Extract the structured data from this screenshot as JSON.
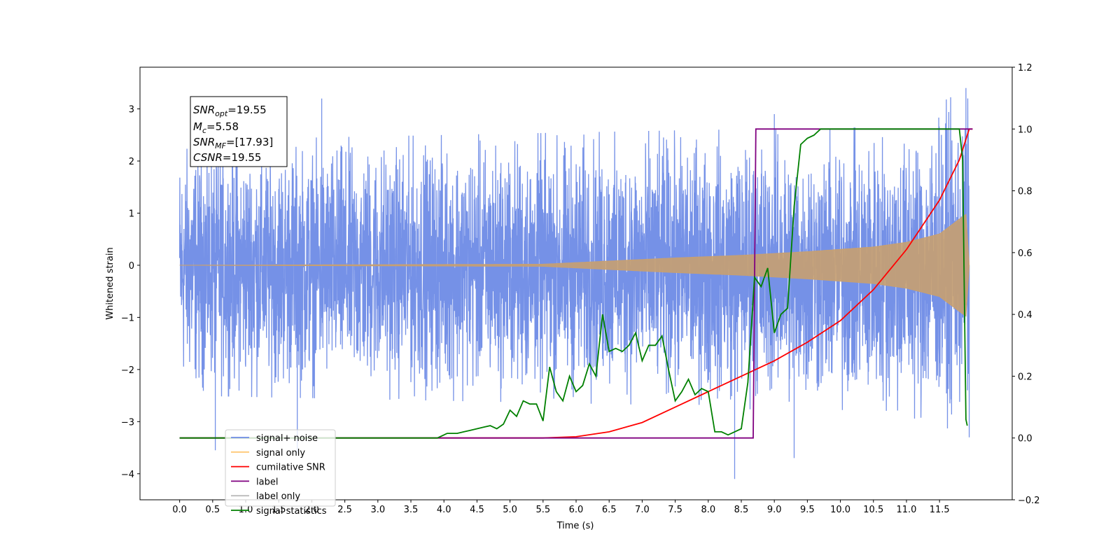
{
  "chart_data": {
    "type": "line",
    "title": "",
    "xlabel": "Time (s)",
    "ylabel": "Whitened strain",
    "xlim": [
      -0.6,
      12.6
    ],
    "ylim_left": [
      -4.5,
      3.8
    ],
    "ylim_right": [
      -0.2,
      1.2
    ],
    "x_ticks": [
      0.0,
      0.5,
      1.0,
      1.5,
      2.0,
      2.5,
      3.0,
      3.5,
      4.0,
      4.5,
      5.0,
      5.5,
      6.0,
      6.5,
      7.0,
      7.5,
      8.0,
      8.5,
      9.0,
      9.5,
      10.0,
      10.5,
      11.0,
      11.5
    ],
    "x_tick_labels": [
      "0.0",
      "0.5",
      "1.0",
      "1.5",
      "2.0",
      "2.5",
      "3.0",
      "3.5",
      "4.0",
      "4.5",
      "5.0",
      "5.5",
      "6.0",
      "6.5",
      "7.0",
      "7.5",
      "8.0",
      "8.5",
      "9.0",
      "9.5",
      "10.0",
      "10.5",
      "11.0",
      "11.5"
    ],
    "y_left_ticks": [
      -4,
      -3,
      -2,
      -1,
      0,
      1,
      2,
      3
    ],
    "y_left_tick_labels": [
      "−4",
      "−3",
      "−2",
      "−1",
      "0",
      "1",
      "2",
      "3"
    ],
    "y_right_ticks": [
      -0.2,
      0.0,
      0.2,
      0.4,
      0.6,
      0.8,
      1.0,
      1.2
    ],
    "y_right_tick_labels": [
      "−0.2",
      "0.0",
      "0.2",
      "0.4",
      "0.6",
      "0.8",
      "1.0",
      "1.2"
    ],
    "grid": false,
    "legend": {
      "placement": "lower-left",
      "entries": [
        {
          "label": "signal+ noise",
          "color": "#6e8be6"
        },
        {
          "label": "signal only",
          "color": "#ffc875"
        },
        {
          "label": "cumilative SNR",
          "color": "#ff0000"
        },
        {
          "label": "label",
          "color": "#800080"
        },
        {
          "label": "label only",
          "color": "#bbbbbb"
        },
        {
          "label": "signal statistics",
          "color": "#008000"
        }
      ]
    },
    "stats_box": [
      {
        "name": "SNR",
        "sub": "opt",
        "value": "=19.55"
      },
      {
        "name": "M",
        "sub": "c",
        "value": "=5.58"
      },
      {
        "name": "SNR",
        "sub": "MF",
        "value": "=[17.93]"
      },
      {
        "name": "CSNR",
        "sub": "",
        "value": "=19.55"
      }
    ],
    "series": [
      {
        "name": "signal+ noise",
        "axis": "left",
        "color": "#6e8be6",
        "description": "whitened noise plus signal, dense oscillation from 0.0 to 11.95 s",
        "noise_envelope": {
          "x": [
            0.0,
            4.0,
            8.0,
            10.0,
            11.0,
            11.95
          ],
          "min": [
            -2.5,
            -2.6,
            -2.7,
            -2.9,
            -3.0,
            -3.2
          ],
          "max": [
            2.4,
            2.5,
            2.6,
            2.6,
            2.8,
            3.4
          ]
        },
        "extrema": [
          {
            "x": 0.54,
            "y": -3.55
          },
          {
            "x": 1.78,
            "y": -3.6
          },
          {
            "x": 2.15,
            "y": 3.2
          },
          {
            "x": 8.4,
            "y": -4.1
          },
          {
            "x": 9.3,
            "y": -3.7
          },
          {
            "x": 9.0,
            "y": 2.9
          },
          {
            "x": 11.9,
            "y": 3.4
          },
          {
            "x": 11.95,
            "y": -3.3
          }
        ]
      },
      {
        "name": "signal only",
        "axis": "left",
        "color": "#c8a070",
        "description": "chirp signal, amplitude grows toward merger near 11.9 s",
        "x": [
          0.0,
          5.5,
          6.5,
          7.5,
          8.5,
          9.5,
          10.5,
          11.0,
          11.5,
          11.9,
          11.95
        ],
        "amplitude": [
          0.0,
          0.02,
          0.08,
          0.14,
          0.19,
          0.26,
          0.35,
          0.44,
          0.6,
          0.98,
          0.0
        ]
      },
      {
        "name": "cumilative SNR",
        "axis": "right",
        "color": "#ff0000",
        "x": [
          0.0,
          5.5,
          6.0,
          6.5,
          7.0,
          7.5,
          8.0,
          8.5,
          9.0,
          9.5,
          10.0,
          10.5,
          11.0,
          11.5,
          11.8,
          11.95,
          12.0
        ],
        "values": [
          0.0,
          0.0,
          0.004,
          0.02,
          0.05,
          0.1,
          0.15,
          0.2,
          0.25,
          0.31,
          0.38,
          0.48,
          0.61,
          0.77,
          0.9,
          1.0,
          1.0
        ]
      },
      {
        "name": "label",
        "axis": "right",
        "color": "#800080",
        "x": [
          0.0,
          8.68,
          8.72,
          11.95,
          12.0
        ],
        "values": [
          0.0,
          0.0,
          1.0,
          1.0,
          1.0
        ]
      },
      {
        "name": "signal statistics",
        "axis": "right",
        "color": "#008000",
        "x": [
          0.0,
          3.9,
          4.05,
          4.2,
          4.3,
          4.4,
          4.5,
          4.6,
          4.7,
          4.8,
          4.9,
          5.0,
          5.1,
          5.2,
          5.3,
          5.4,
          5.5,
          5.6,
          5.7,
          5.8,
          5.9,
          6.0,
          6.1,
          6.2,
          6.3,
          6.4,
          6.5,
          6.6,
          6.7,
          6.8,
          6.9,
          7.0,
          7.1,
          7.2,
          7.3,
          7.4,
          7.5,
          7.6,
          7.7,
          7.8,
          7.9,
          8.0,
          8.1,
          8.2,
          8.3,
          8.4,
          8.5,
          8.6,
          8.7,
          8.8,
          8.9,
          9.0,
          9.1,
          9.2,
          9.3,
          9.4,
          9.5,
          9.6,
          9.7,
          9.8,
          10.0,
          11.0,
          11.8,
          11.85,
          11.9,
          11.92
        ],
        "values": [
          0.0,
          0.0,
          0.015,
          0.015,
          0.02,
          0.025,
          0.03,
          0.035,
          0.04,
          0.03,
          0.045,
          0.09,
          0.07,
          0.12,
          0.11,
          0.11,
          0.055,
          0.23,
          0.15,
          0.12,
          0.2,
          0.15,
          0.17,
          0.24,
          0.2,
          0.4,
          0.28,
          0.29,
          0.28,
          0.3,
          0.34,
          0.25,
          0.3,
          0.3,
          0.33,
          0.22,
          0.12,
          0.15,
          0.19,
          0.14,
          0.16,
          0.15,
          0.02,
          0.02,
          0.01,
          0.02,
          0.03,
          0.18,
          0.52,
          0.49,
          0.55,
          0.34,
          0.4,
          0.42,
          0.75,
          0.95,
          0.97,
          0.98,
          1.0,
          1.0,
          1.0,
          1.0,
          1.0,
          0.9,
          0.06,
          0.04
        ]
      }
    ]
  }
}
